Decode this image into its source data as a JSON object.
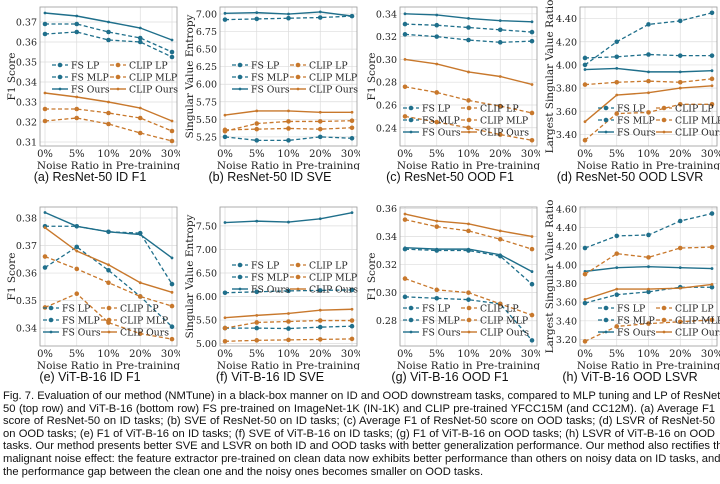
{
  "colors": {
    "fs": "#1f6f8b",
    "fs_light": "#2f8aa8",
    "clip": "#c8782c",
    "clip_light": "#d8913e",
    "grid": "#dcdcdc"
  },
  "series_names": [
    "FS LP",
    "FS MLP",
    "FS Ours",
    "CLIP LP",
    "CLIP MLP",
    "CLIP Ours"
  ],
  "chart_data": [
    {
      "id": "a",
      "type": "line",
      "title": "(a) ResNet-50 ID F1",
      "xlabel": "Noise Ratio in Pre-training",
      "ylabel": "F1 Score",
      "categories": [
        "0%",
        "5%",
        "10%",
        "20%",
        "30%"
      ],
      "ylim": [
        0.308,
        0.3775
      ],
      "yticks": [
        "0.31",
        "0.32",
        "0.33",
        "0.34",
        "0.35",
        "0.36",
        "0.37"
      ],
      "legend": "center",
      "grid": true,
      "series": [
        {
          "name": "FS LP",
          "values": [
            0.364,
            0.365,
            0.361,
            0.36,
            0.3525
          ]
        },
        {
          "name": "FS MLP",
          "values": [
            0.369,
            0.369,
            0.365,
            0.362,
            0.355
          ]
        },
        {
          "name": "FS Ours",
          "values": [
            0.3745,
            0.373,
            0.37,
            0.367,
            0.361
          ]
        },
        {
          "name": "CLIP LP",
          "values": [
            0.3205,
            0.322,
            0.319,
            0.3145,
            0.3105
          ]
        },
        {
          "name": "CLIP MLP",
          "values": [
            0.3265,
            0.3265,
            0.3245,
            0.322,
            0.3155
          ]
        },
        {
          "name": "CLIP Ours",
          "values": [
            0.3345,
            0.3325,
            0.33,
            0.327,
            0.3205
          ]
        }
      ]
    },
    {
      "id": "b",
      "type": "line",
      "title": "(b) ResNet-50 ID SVE",
      "xlabel": "Noise Ratio in Pre-training",
      "ylabel": "Singular Value Entropy",
      "categories": [
        "0%",
        "5%",
        "10%",
        "20%",
        "30%"
      ],
      "ylim": [
        5.12,
        7.1
      ],
      "yticks": [
        "5.25",
        "5.50",
        "5.75",
        "6.00",
        "6.25",
        "6.50",
        "6.75",
        "7.00"
      ],
      "legend": "center",
      "grid": true,
      "series": [
        {
          "name": "FS LP",
          "values": [
            6.92,
            6.93,
            6.94,
            6.95,
            6.97
          ]
        },
        {
          "name": "FS MLP",
          "values": [
            5.25,
            5.2,
            5.2,
            5.25,
            5.23
          ]
        },
        {
          "name": "FS Ours",
          "values": [
            7.01,
            7.02,
            7.0,
            7.03,
            6.97
          ]
        },
        {
          "name": "CLIP LP",
          "values": [
            5.33,
            5.44,
            5.47,
            5.47,
            5.48
          ]
        },
        {
          "name": "CLIP MLP",
          "values": [
            5.35,
            5.36,
            5.37,
            5.36,
            5.38
          ]
        },
        {
          "name": "CLIP Ours",
          "values": [
            5.56,
            5.62,
            5.62,
            5.6,
            5.6
          ]
        }
      ]
    },
    {
      "id": "c",
      "type": "line",
      "title": "(c) ResNet-50 OOD F1",
      "xlabel": "Noise Ratio in Pre-training",
      "ylabel": "F1 Score",
      "categories": [
        "0%",
        "5%",
        "10%",
        "20%",
        "30%"
      ],
      "ylim": [
        0.224,
        0.346
      ],
      "yticks": [
        "0.24",
        "0.26",
        "0.28",
        "0.30",
        "0.32",
        "0.34"
      ],
      "legend": "lower-left",
      "grid": true,
      "series": [
        {
          "name": "FS LP",
          "values": [
            0.322,
            0.32,
            0.317,
            0.315,
            0.316
          ]
        },
        {
          "name": "FS MLP",
          "values": [
            0.331,
            0.33,
            0.328,
            0.326,
            0.324
          ]
        },
        {
          "name": "FS Ours",
          "values": [
            0.34,
            0.339,
            0.336,
            0.334,
            0.333
          ]
        },
        {
          "name": "CLIP LP",
          "values": [
            0.25,
            0.245,
            0.24,
            0.234,
            0.229
          ]
        },
        {
          "name": "CLIP MLP",
          "values": [
            0.276,
            0.271,
            0.264,
            0.259,
            0.253
          ]
        },
        {
          "name": "CLIP Ours",
          "values": [
            0.3,
            0.296,
            0.289,
            0.285,
            0.278
          ]
        }
      ]
    },
    {
      "id": "d",
      "type": "line",
      "title": "(d) ResNet-50 OOD LSVR",
      "xlabel": "Noise Ratio in Pre-training",
      "ylabel": "Largest Singular Value Ratio",
      "categories": [
        "0%",
        "5%",
        "10%",
        "20%",
        "30%"
      ],
      "ylim": [
        3.3,
        4.5
      ],
      "yticks": [
        "3.40",
        "3.60",
        "3.80",
        "4.00",
        "4.20",
        "4.40"
      ],
      "legend": "lower-right",
      "grid": true,
      "series": [
        {
          "name": "FS LP",
          "values": [
            4.0,
            4.2,
            4.35,
            4.38,
            4.45
          ]
        },
        {
          "name": "FS MLP",
          "values": [
            4.06,
            4.07,
            4.09,
            4.08,
            4.08
          ]
        },
        {
          "name": "FS Ours",
          "values": [
            3.96,
            3.97,
            3.94,
            3.94,
            3.95
          ]
        },
        {
          "name": "CLIP LP",
          "values": [
            3.35,
            3.58,
            3.59,
            3.66,
            3.66
          ]
        },
        {
          "name": "CLIP MLP",
          "values": [
            3.83,
            3.85,
            3.86,
            3.85,
            3.88
          ]
        },
        {
          "name": "CLIP Ours",
          "values": [
            3.51,
            3.74,
            3.76,
            3.8,
            3.82
          ]
        }
      ]
    },
    {
      "id": "e",
      "type": "line",
      "title": "(e) ViT-B-16 ID F1",
      "xlabel": "Noise Ratio in Pre-training",
      "ylabel": "F1 Score",
      "categories": [
        "0%",
        "5%",
        "10%",
        "20%",
        "30%"
      ],
      "ylim": [
        0.3335,
        0.384
      ],
      "yticks": [
        "0.34",
        "0.35",
        "0.36",
        "0.37",
        "0.38"
      ],
      "legend": "lower-left",
      "grid": true,
      "series": [
        {
          "name": "FS LP",
          "values": [
            0.362,
            0.3695,
            0.361,
            0.3515,
            0.3405
          ]
        },
        {
          "name": "FS MLP",
          "values": [
            0.377,
            0.377,
            0.375,
            0.3745,
            0.356
          ]
        },
        {
          "name": "FS Ours",
          "values": [
            0.382,
            0.377,
            0.375,
            0.374,
            0.3655
          ]
        },
        {
          "name": "CLIP LP",
          "values": [
            0.3475,
            0.3525,
            0.342,
            0.338,
            0.336
          ]
        },
        {
          "name": "CLIP MLP",
          "values": [
            0.366,
            0.3615,
            0.3565,
            0.3515,
            0.348
          ]
        },
        {
          "name": "CLIP Ours",
          "values": [
            0.3765,
            0.368,
            0.363,
            0.3565,
            0.353
          ]
        }
      ]
    },
    {
      "id": "f",
      "type": "line",
      "title": "(f) ViT-B-16 ID SVE",
      "xlabel": "Noise Ratio in Pre-training",
      "ylabel": "Singular Value Entropy",
      "categories": [
        "0%",
        "5%",
        "10%",
        "20%",
        "30%"
      ],
      "ylim": [
        4.95,
        7.9
      ],
      "yticks": [
        "5.00",
        "5.50",
        "6.00",
        "6.50",
        "7.00",
        "7.50"
      ],
      "legend": "center",
      "grid": true,
      "series": [
        {
          "name": "FS LP",
          "values": [
            6.08,
            6.1,
            6.12,
            6.13,
            6.14
          ]
        },
        {
          "name": "FS MLP",
          "values": [
            5.33,
            5.33,
            5.32,
            5.35,
            5.37
          ]
        },
        {
          "name": "FS Ours",
          "values": [
            7.57,
            7.6,
            7.58,
            7.65,
            7.78
          ]
        },
        {
          "name": "CLIP LP",
          "values": [
            5.33,
            5.45,
            5.47,
            5.49,
            5.49
          ]
        },
        {
          "name": "CLIP MLP",
          "values": [
            5.05,
            5.07,
            5.08,
            5.09,
            5.1
          ]
        },
        {
          "name": "CLIP Ours",
          "values": [
            5.55,
            5.6,
            5.64,
            5.71,
            5.73
          ]
        }
      ]
    },
    {
      "id": "g",
      "type": "line",
      "title": "(g) ViT-B-16 OOD F1",
      "xlabel": "Noise Ratio in Pre-training",
      "ylabel": "F1 Score",
      "categories": [
        "0%",
        "5%",
        "10%",
        "20%",
        "30%"
      ],
      "ylim": [
        0.262,
        0.361
      ],
      "yticks": [
        "0.28",
        "0.30",
        "0.32",
        "0.34",
        "0.36"
      ],
      "legend": "lower-left",
      "grid": true,
      "series": [
        {
          "name": "FS LP",
          "values": [
            0.297,
            0.296,
            0.295,
            0.292,
            0.266
          ]
        },
        {
          "name": "FS MLP",
          "values": [
            0.331,
            0.33,
            0.33,
            0.326,
            0.306
          ]
        },
        {
          "name": "FS Ours",
          "values": [
            0.332,
            0.331,
            0.331,
            0.327,
            0.315
          ]
        },
        {
          "name": "CLIP LP",
          "values": [
            0.31,
            0.302,
            0.3,
            0.292,
            0.284
          ]
        },
        {
          "name": "CLIP MLP",
          "values": [
            0.352,
            0.347,
            0.344,
            0.338,
            0.331
          ]
        },
        {
          "name": "CLIP Ours",
          "values": [
            0.356,
            0.351,
            0.349,
            0.344,
            0.34
          ]
        }
      ]
    },
    {
      "id": "h",
      "type": "line",
      "title": "(h) ViT-B-16 OOD LSVR",
      "xlabel": "Noise Ratio in Pre-training",
      "ylabel": "Largest Singular Value Ratio",
      "categories": [
        "0%",
        "5%",
        "10%",
        "20%",
        "30%"
      ],
      "ylim": [
        3.13,
        4.62
      ],
      "yticks": [
        "3.20",
        "3.40",
        "3.60",
        "3.80",
        "4.00",
        "4.20",
        "4.40",
        "4.60"
      ],
      "legend": "lower-right",
      "grid": true,
      "series": [
        {
          "name": "FS LP",
          "values": [
            3.59,
            3.68,
            3.71,
            3.76,
            3.76
          ]
        },
        {
          "name": "FS MLP",
          "values": [
            4.18,
            4.31,
            4.32,
            4.47,
            4.55
          ]
        },
        {
          "name": "FS Ours",
          "values": [
            3.93,
            3.97,
            3.98,
            3.97,
            3.96
          ]
        },
        {
          "name": "CLIP LP",
          "values": [
            3.18,
            3.34,
            3.37,
            3.39,
            3.41
          ]
        },
        {
          "name": "CLIP MLP",
          "values": [
            3.9,
            4.12,
            4.08,
            4.18,
            4.19
          ]
        },
        {
          "name": "CLIP Ours",
          "values": [
            3.63,
            3.74,
            3.74,
            3.75,
            3.79
          ]
        }
      ]
    }
  ],
  "caption": {
    "lines": [
      "Fig. 7.  Evaluation of our method (NMTune) in a black-box manner on ID and OOD downstream tasks, compared to MLP tuning and LP of ResNet-",
      "50 (top row) and ViT-B-16 (bottom row) FS pre-trained on ImageNet-1K (IN-1K) and CLIP pre-trained YFCC15M (and CC12M). (a) Average F1",
      "score of ResNet-50 on ID tasks; (b) SVE of ResNet-50 on ID tasks; (c) Average F1 of ResNet-50 score on OOD tasks; (d) LSVR of ResNet-50",
      "on OOD tasks; (e) F1 of ViT-B-16 on ID tasks; (f) SVE of ViT-B-16 on ID tasks; (g) F1 of ViT-B-16 on OOD tasks; (h) LSVR of ViT-B-16 on OOD",
      "tasks. Our method presents better SVE and LSVR on both ID and OOD tasks with better generalization performance. Our method also rectifies the",
      "malignant noise effect: the feature extractor pre-trained on clean data now exhibits better performance than others on noisy data on ID tasks, and",
      "the performance gap between the clean one and the noisy ones becomes smaller on OOD tasks."
    ]
  }
}
